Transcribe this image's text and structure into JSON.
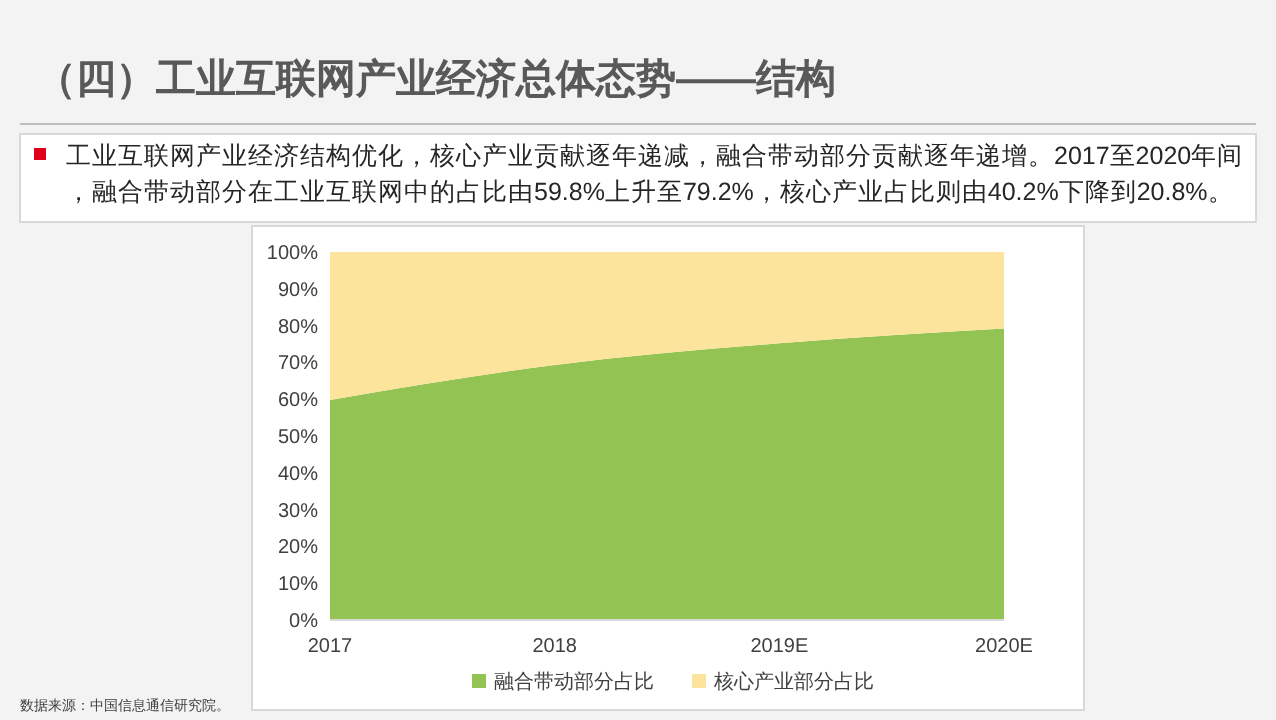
{
  "chart_data": {
    "type": "area",
    "stacked": true,
    "title": "（四）工业互联网产业经济总体态势——结构",
    "subtitle": "工业互联网产业经济结构优化，核心产业贡献逐年递减，融合带动部分贡献逐年递增。2017至2020年间，融合带动部分在工业互联网中的占比由59.8%上升至79.2%，核心产业占比则由40.2%下降到20.8%。",
    "annotations": [
      "数据来源：中国信息通信研究院。"
    ],
    "categories": [
      "2017",
      "2018",
      "2019E",
      "2020E"
    ],
    "series": [
      {
        "name": "融合带动部分占比",
        "color": "#92c353",
        "values": [
          59.8,
          69.3,
          75.2,
          79.2
        ]
      },
      {
        "name": "核心产业部分占比",
        "color": "#fde49c",
        "values": [
          40.2,
          30.7,
          24.8,
          20.8
        ]
      }
    ],
    "ylim": [
      0,
      100
    ],
    "yticks": [
      {
        "value": 0,
        "label": "0%"
      },
      {
        "value": 10,
        "label": "10%"
      },
      {
        "value": 20,
        "label": "20%"
      },
      {
        "value": 30,
        "label": "30%"
      },
      {
        "value": 40,
        "label": "40%"
      },
      {
        "value": 50,
        "label": "50%"
      },
      {
        "value": 60,
        "label": "60%"
      },
      {
        "value": 70,
        "label": "70%"
      },
      {
        "value": 80,
        "label": "80%"
      },
      {
        "value": 90,
        "label": "90%"
      },
      {
        "value": 100,
        "label": "100%"
      }
    ],
    "grid": false,
    "legend": "bottom"
  }
}
